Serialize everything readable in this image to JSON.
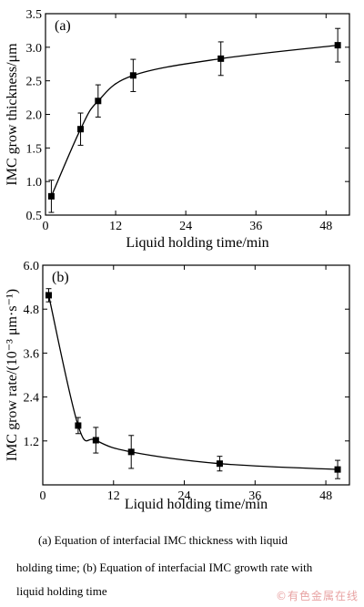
{
  "chart_data": [
    {
      "type": "line",
      "panel_label": "(a)",
      "xlabel": "Liquid holding time/min",
      "ylabel": "IMC grow thickness/μm",
      "xlim": [
        0,
        52
      ],
      "ylim": [
        0.5,
        3.5
      ],
      "x_ticks": [
        "0",
        "12",
        "24",
        "36",
        "48"
      ],
      "y_ticks": [
        "0.5",
        "1.0",
        "1.5",
        "2.0",
        "2.5",
        "3.0",
        "3.5"
      ],
      "series": [
        {
          "x": [
            1,
            6,
            9,
            15,
            30,
            50
          ],
          "y": [
            0.78,
            1.78,
            2.2,
            2.58,
            2.83,
            3.03
          ],
          "error": [
            0.24,
            0.24,
            0.24,
            0.24,
            0.25,
            0.25
          ]
        }
      ]
    },
    {
      "type": "line",
      "panel_label": "(b)",
      "xlabel": "Liquid holding time/min",
      "ylabel": "IMC grow rate/(10⁻³ μm·s⁻¹)",
      "xlim": [
        0,
        52
      ],
      "ylim": [
        0,
        6.0
      ],
      "x_ticks": [
        "0",
        "12",
        "24",
        "36",
        "48"
      ],
      "y_ticks": [
        "1.2",
        "2.4",
        "3.6",
        "4.8",
        "6.0"
      ],
      "series": [
        {
          "x": [
            1,
            6,
            9,
            15,
            30,
            50
          ],
          "y": [
            5.18,
            1.62,
            1.22,
            0.9,
            0.58,
            0.42
          ],
          "error": [
            0.18,
            0.22,
            0.35,
            0.45,
            0.2,
            0.25
          ]
        }
      ]
    }
  ],
  "caption": {
    "line1": "(a) Equation of interfacial IMC thickness with liquid",
    "line2": "holding time; (b) Equation of interfacial IMC growth rate with",
    "line3": "liquid holding time"
  },
  "watermark": "©有色金属在线"
}
